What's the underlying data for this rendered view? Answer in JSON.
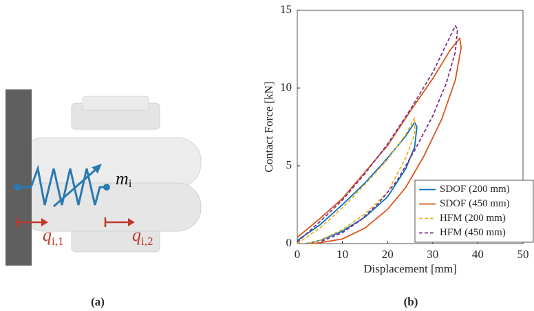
{
  "panel_a": {
    "mass": {
      "symbol": "m",
      "subscript": "i"
    },
    "dof_1": {
      "symbol": "q",
      "subscript": "i,1"
    },
    "dof_2": {
      "symbol": "q",
      "subscript": "i,2"
    },
    "caption": "(a)"
  },
  "chart_data": {
    "type": "line",
    "caption": "(b)",
    "x_label": "Displacement [mm]",
    "y_label": "Contact Force [kN]",
    "xlim": [
      0,
      50
    ],
    "ylim": [
      0,
      15
    ],
    "xticks": [
      0,
      10,
      20,
      30,
      40,
      50
    ],
    "yticks": [
      0,
      5,
      10,
      15
    ],
    "legend": "lower right",
    "series": [
      {
        "name": "SDOF (200 mm)",
        "color": "#0072bd",
        "dash": false,
        "x": [
          0,
          5,
          10,
          15,
          20,
          24,
          26,
          26.5,
          26,
          24,
          20,
          15,
          10,
          5,
          2
        ],
        "values": [
          0.2,
          1.2,
          2.5,
          3.9,
          5.5,
          6.9,
          7.8,
          7.5,
          6.2,
          4.8,
          3.0,
          1.7,
          0.8,
          0.2,
          0
        ]
      },
      {
        "name": "SDOF (450 mm)",
        "color": "#d95319",
        "dash": false,
        "x": [
          0,
          5,
          10,
          15,
          20,
          25,
          30,
          34,
          36,
          36.3,
          35,
          32,
          28,
          24,
          20,
          15,
          10,
          5,
          3
        ],
        "values": [
          0.4,
          1.6,
          2.9,
          4.6,
          6.3,
          8.5,
          10.6,
          12.5,
          13.2,
          12.6,
          10.5,
          8.0,
          5.6,
          3.6,
          2.2,
          1.0,
          0.3,
          0.05,
          0
        ]
      },
      {
        "name": "HFM (200 mm)",
        "color": "#edb120",
        "dash": true,
        "x": [
          0,
          5,
          10,
          15,
          20,
          24,
          26,
          26,
          24,
          20,
          15,
          10,
          5,
          2
        ],
        "values": [
          0,
          1.0,
          2.3,
          3.8,
          5.4,
          7.0,
          8.1,
          7.0,
          5.5,
          3.3,
          1.9,
          0.9,
          0.2,
          0
        ]
      },
      {
        "name": "HFM (450 mm)",
        "color": "#7e2f8e",
        "dash": true,
        "x": [
          0,
          5,
          10,
          15,
          20,
          25,
          30,
          33,
          35,
          35.5,
          35,
          33,
          30,
          26,
          22,
          18,
          14,
          10,
          5
        ],
        "values": [
          0.1,
          1.4,
          2.8,
          4.5,
          6.4,
          8.6,
          11.0,
          12.8,
          14.0,
          13.8,
          12.3,
          10.3,
          8.2,
          6.0,
          4.0,
          2.6,
          1.5,
          0.7,
          0.1
        ]
      }
    ]
  }
}
